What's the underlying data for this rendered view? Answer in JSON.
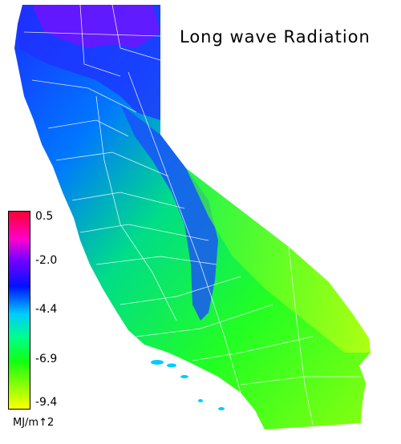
{
  "map": {
    "title": "Long wave Radiation",
    "units": "MJ/m↑2",
    "legend": {
      "ticks": [
        "0.5",
        "-2.0",
        "-4.4",
        "-6.9",
        "-9.4"
      ],
      "colors": [
        "#ff0033",
        "#ff00cc",
        "#7a00ff",
        "#0011ff",
        "#00ccff",
        "#00ff88",
        "#11ff11",
        "#ffff00"
      ]
    },
    "region": "California"
  }
}
